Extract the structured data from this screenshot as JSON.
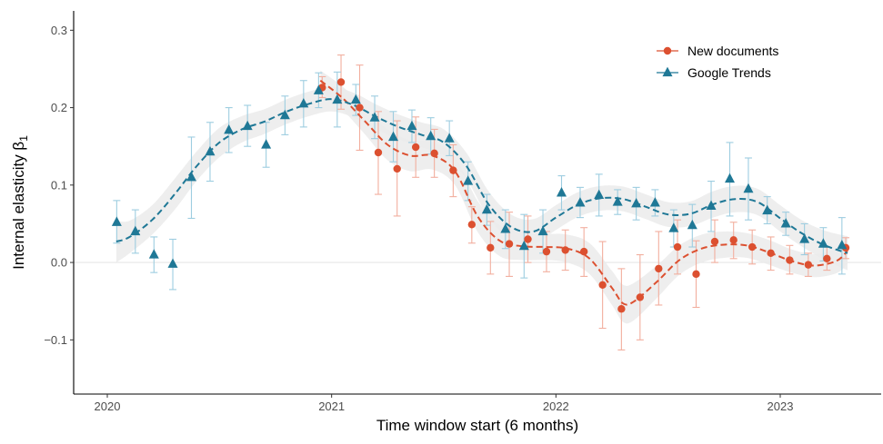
{
  "chart_data": {
    "type": "scatter",
    "xlabel": "Time window start (6 months)",
    "ylabel": "Internal elasticity β",
    "ylabel_subscript": "1",
    "xlim": [
      2019.85,
      2023.45
    ],
    "ylim": [
      -0.17,
      0.325
    ],
    "x_ticks": [
      2020,
      2021,
      2022,
      2023
    ],
    "x_tick_labels": [
      "2020",
      "2021",
      "2022",
      "2023"
    ],
    "y_ticks": [
      -0.1,
      0.0,
      0.1,
      0.2,
      0.3
    ],
    "y_tick_labels": [
      "−0.1",
      "0.0",
      "0.1",
      "0.2",
      "0.3"
    ],
    "zero_line": true,
    "grid": false,
    "legend_position": "top-right",
    "colors": {
      "new_documents": "#dc5030",
      "new_documents_error": "#f2ae9e",
      "google_trends": "#1f7896",
      "google_trends_error": "#9dcde0",
      "ribbon": "#ebebeb",
      "zero_line": "#e6e6e6"
    },
    "series": [
      {
        "name": "New documents",
        "marker": "circle",
        "points": [
          {
            "x": 2020.958,
            "y": 0.226,
            "lo": 0.213,
            "hi": 0.24
          },
          {
            "x": 2021.042,
            "y": 0.233,
            "lo": 0.198,
            "hi": 0.268
          },
          {
            "x": 2021.125,
            "y": 0.2,
            "lo": 0.145,
            "hi": 0.255
          },
          {
            "x": 2021.208,
            "y": 0.142,
            "lo": 0.088,
            "hi": 0.195
          },
          {
            "x": 2021.292,
            "y": 0.121,
            "lo": 0.06,
            "hi": 0.183
          },
          {
            "x": 2021.375,
            "y": 0.149,
            "lo": 0.11,
            "hi": 0.188
          },
          {
            "x": 2021.458,
            "y": 0.141,
            "lo": 0.11,
            "hi": 0.172
          },
          {
            "x": 2021.542,
            "y": 0.119,
            "lo": 0.085,
            "hi": 0.152
          },
          {
            "x": 2021.625,
            "y": 0.049,
            "lo": 0.025,
            "hi": 0.072
          },
          {
            "x": 2021.708,
            "y": 0.019,
            "lo": -0.015,
            "hi": 0.053
          },
          {
            "x": 2021.792,
            "y": 0.024,
            "lo": -0.018,
            "hi": 0.065
          },
          {
            "x": 2021.875,
            "y": 0.03,
            "lo": 0.0,
            "hi": 0.06
          },
          {
            "x": 2021.958,
            "y": 0.014,
            "lo": -0.012,
            "hi": 0.04
          },
          {
            "x": 2022.042,
            "y": 0.016,
            "lo": -0.01,
            "hi": 0.042
          },
          {
            "x": 2022.125,
            "y": 0.014,
            "lo": -0.018,
            "hi": 0.045
          },
          {
            "x": 2022.208,
            "y": -0.029,
            "lo": -0.085,
            "hi": 0.027
          },
          {
            "x": 2022.292,
            "y": -0.06,
            "lo": -0.113,
            "hi": -0.008
          },
          {
            "x": 2022.375,
            "y": -0.045,
            "lo": -0.1,
            "hi": 0.01
          },
          {
            "x": 2022.458,
            "y": -0.008,
            "lo": -0.055,
            "hi": 0.04
          },
          {
            "x": 2022.542,
            "y": 0.02,
            "lo": -0.015,
            "hi": 0.055
          },
          {
            "x": 2022.625,
            "y": -0.015,
            "lo": -0.058,
            "hi": 0.028
          },
          {
            "x": 2022.708,
            "y": 0.027,
            "lo": 0.0,
            "hi": 0.055
          },
          {
            "x": 2022.792,
            "y": 0.029,
            "lo": 0.005,
            "hi": 0.052
          },
          {
            "x": 2022.875,
            "y": 0.02,
            "lo": -0.002,
            "hi": 0.042
          },
          {
            "x": 2022.958,
            "y": 0.012,
            "lo": -0.01,
            "hi": 0.033
          },
          {
            "x": 2023.042,
            "y": 0.003,
            "lo": -0.015,
            "hi": 0.022
          },
          {
            "x": 2023.125,
            "y": -0.003,
            "lo": -0.018,
            "hi": 0.012
          },
          {
            "x": 2023.208,
            "y": 0.005,
            "lo": -0.01,
            "hi": 0.02
          },
          {
            "x": 2023.292,
            "y": 0.019,
            "lo": 0.005,
            "hi": 0.032
          }
        ],
        "trend": {
          "x": [
            2020.95,
            2021.05,
            2021.15,
            2021.25,
            2021.35,
            2021.45,
            2021.55,
            2021.65,
            2021.75,
            2021.85,
            2021.95,
            2022.05,
            2022.15,
            2022.25,
            2022.3,
            2022.35,
            2022.45,
            2022.55,
            2022.65,
            2022.75,
            2022.85,
            2022.95,
            2023.05,
            2023.15,
            2023.25,
            2023.3
          ],
          "y": [
            0.235,
            0.212,
            0.182,
            0.152,
            0.138,
            0.138,
            0.118,
            0.06,
            0.028,
            0.021,
            0.02,
            0.018,
            0.005,
            -0.033,
            -0.053,
            -0.05,
            -0.025,
            0.003,
            0.018,
            0.023,
            0.022,
            0.013,
            0.002,
            -0.004,
            0.002,
            0.015
          ],
          "lo": [
            0.222,
            0.197,
            0.165,
            0.132,
            0.118,
            0.12,
            0.1,
            0.04,
            0.008,
            0.003,
            0.003,
            0.0,
            -0.015,
            -0.055,
            -0.077,
            -0.074,
            -0.046,
            -0.016,
            0.0,
            0.006,
            0.006,
            -0.003,
            -0.013,
            -0.019,
            -0.014,
            -0.002
          ],
          "hi": [
            0.248,
            0.227,
            0.199,
            0.172,
            0.158,
            0.156,
            0.136,
            0.08,
            0.048,
            0.039,
            0.037,
            0.036,
            0.025,
            -0.011,
            -0.029,
            -0.026,
            -0.004,
            0.022,
            0.036,
            0.04,
            0.038,
            0.029,
            0.017,
            0.011,
            0.018,
            0.032
          ]
        }
      },
      {
        "name": "Google Trends",
        "marker": "triangle",
        "points": [
          {
            "x": 2020.042,
            "y": 0.052,
            "lo": 0.025,
            "hi": 0.08
          },
          {
            "x": 2020.125,
            "y": 0.04,
            "lo": 0.012,
            "hi": 0.068
          },
          {
            "x": 2020.208,
            "y": 0.01,
            "lo": -0.013,
            "hi": 0.033
          },
          {
            "x": 2020.292,
            "y": -0.002,
            "lo": -0.035,
            "hi": 0.03
          },
          {
            "x": 2020.375,
            "y": 0.11,
            "lo": 0.057,
            "hi": 0.162
          },
          {
            "x": 2020.458,
            "y": 0.143,
            "lo": 0.105,
            "hi": 0.181
          },
          {
            "x": 2020.542,
            "y": 0.171,
            "lo": 0.142,
            "hi": 0.2
          },
          {
            "x": 2020.625,
            "y": 0.176,
            "lo": 0.15,
            "hi": 0.203
          },
          {
            "x": 2020.708,
            "y": 0.152,
            "lo": 0.123,
            "hi": 0.181
          },
          {
            "x": 2020.792,
            "y": 0.19,
            "lo": 0.165,
            "hi": 0.215
          },
          {
            "x": 2020.875,
            "y": 0.205,
            "lo": 0.175,
            "hi": 0.235
          },
          {
            "x": 2020.942,
            "y": 0.222,
            "lo": 0.2,
            "hi": 0.245
          },
          {
            "x": 2021.025,
            "y": 0.21,
            "lo": 0.175,
            "hi": 0.246
          },
          {
            "x": 2021.108,
            "y": 0.21,
            "lo": 0.19,
            "hi": 0.23
          },
          {
            "x": 2021.192,
            "y": 0.187,
            "lo": 0.16,
            "hi": 0.215
          },
          {
            "x": 2021.275,
            "y": 0.162,
            "lo": 0.13,
            "hi": 0.195
          },
          {
            "x": 2021.358,
            "y": 0.176,
            "lo": 0.155,
            "hi": 0.197
          },
          {
            "x": 2021.442,
            "y": 0.163,
            "lo": 0.14,
            "hi": 0.187
          },
          {
            "x": 2021.525,
            "y": 0.16,
            "lo": 0.138,
            "hi": 0.183
          },
          {
            "x": 2021.608,
            "y": 0.105,
            "lo": 0.08,
            "hi": 0.13
          },
          {
            "x": 2021.692,
            "y": 0.068,
            "lo": 0.048,
            "hi": 0.088
          },
          {
            "x": 2021.775,
            "y": 0.043,
            "lo": 0.018,
            "hi": 0.068
          },
          {
            "x": 2021.858,
            "y": 0.021,
            "lo": -0.02,
            "hi": 0.062
          },
          {
            "x": 2021.942,
            "y": 0.04,
            "lo": 0.012,
            "hi": 0.068
          },
          {
            "x": 2022.025,
            "y": 0.09,
            "lo": 0.068,
            "hi": 0.112
          },
          {
            "x": 2022.108,
            "y": 0.077,
            "lo": 0.058,
            "hi": 0.097
          },
          {
            "x": 2022.192,
            "y": 0.087,
            "lo": 0.06,
            "hi": 0.114
          },
          {
            "x": 2022.275,
            "y": 0.078,
            "lo": 0.062,
            "hi": 0.094
          },
          {
            "x": 2022.358,
            "y": 0.076,
            "lo": 0.055,
            "hi": 0.097
          },
          {
            "x": 2022.442,
            "y": 0.077,
            "lo": 0.06,
            "hi": 0.094
          },
          {
            "x": 2022.525,
            "y": 0.044,
            "lo": 0.02,
            "hi": 0.068
          },
          {
            "x": 2022.608,
            "y": 0.048,
            "lo": 0.02,
            "hi": 0.075
          },
          {
            "x": 2022.692,
            "y": 0.073,
            "lo": 0.04,
            "hi": 0.105
          },
          {
            "x": 2022.775,
            "y": 0.108,
            "lo": 0.06,
            "hi": 0.155
          },
          {
            "x": 2022.858,
            "y": 0.095,
            "lo": 0.055,
            "hi": 0.135
          },
          {
            "x": 2022.942,
            "y": 0.067,
            "lo": 0.05,
            "hi": 0.085
          },
          {
            "x": 2023.025,
            "y": 0.05,
            "lo": 0.035,
            "hi": 0.065
          },
          {
            "x": 2023.108,
            "y": 0.03,
            "lo": 0.01,
            "hi": 0.05
          },
          {
            "x": 2023.192,
            "y": 0.024,
            "lo": 0.002,
            "hi": 0.045
          },
          {
            "x": 2023.275,
            "y": 0.022,
            "lo": -0.015,
            "hi": 0.058
          }
        ],
        "trend": {
          "x": [
            2020.04,
            2020.1,
            2020.2,
            2020.3,
            2020.4,
            2020.5,
            2020.6,
            2020.7,
            2020.8,
            2020.9,
            2021.0,
            2021.1,
            2021.2,
            2021.3,
            2021.4,
            2021.5,
            2021.6,
            2021.7,
            2021.8,
            2021.9,
            2022.0,
            2022.1,
            2022.2,
            2022.3,
            2022.4,
            2022.5,
            2022.6,
            2022.7,
            2022.8,
            2022.9,
            2023.0,
            2023.1,
            2023.2,
            2023.3
          ],
          "y": [
            0.027,
            0.033,
            0.055,
            0.088,
            0.125,
            0.155,
            0.172,
            0.182,
            0.195,
            0.205,
            0.211,
            0.203,
            0.188,
            0.175,
            0.165,
            0.155,
            0.125,
            0.075,
            0.046,
            0.04,
            0.058,
            0.075,
            0.083,
            0.082,
            0.072,
            0.062,
            0.063,
            0.075,
            0.082,
            0.078,
            0.057,
            0.037,
            0.022,
            0.012
          ],
          "lo": [
            0.0,
            0.012,
            0.036,
            0.068,
            0.106,
            0.136,
            0.155,
            0.166,
            0.179,
            0.189,
            0.195,
            0.187,
            0.172,
            0.159,
            0.149,
            0.138,
            0.108,
            0.058,
            0.03,
            0.024,
            0.042,
            0.059,
            0.067,
            0.066,
            0.056,
            0.046,
            0.047,
            0.058,
            0.065,
            0.061,
            0.04,
            0.02,
            0.003,
            -0.01
          ],
          "hi": [
            0.054,
            0.054,
            0.074,
            0.108,
            0.144,
            0.174,
            0.189,
            0.198,
            0.211,
            0.221,
            0.227,
            0.219,
            0.204,
            0.191,
            0.181,
            0.172,
            0.142,
            0.092,
            0.062,
            0.056,
            0.074,
            0.091,
            0.099,
            0.098,
            0.088,
            0.078,
            0.079,
            0.092,
            0.099,
            0.095,
            0.074,
            0.054,
            0.041,
            0.034
          ]
        }
      }
    ]
  }
}
